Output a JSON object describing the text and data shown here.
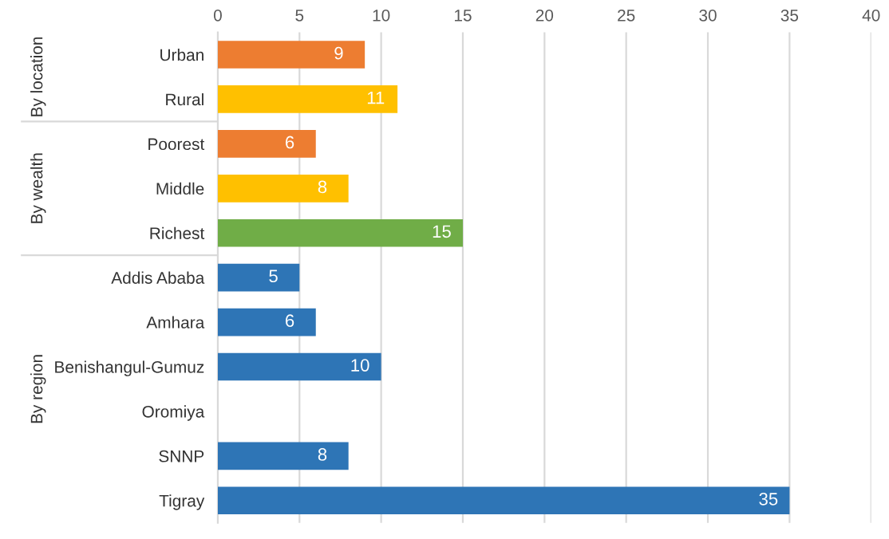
{
  "chart_data": {
    "type": "bar",
    "orientation": "horizontal",
    "categories": [
      "Urban",
      "Rural",
      "Poorest",
      "Middle",
      "Richest",
      "Addis Ababa",
      "Amhara",
      "Benishangul-Gumuz",
      "Oromiya",
      "SNNP",
      "Tigray"
    ],
    "values": [
      9,
      11,
      6,
      8,
      15,
      5,
      6,
      10,
      null,
      8,
      35
    ],
    "colors": [
      "#ed7d31",
      "#ffc000",
      "#ed7d31",
      "#ffc000",
      "#70ad47",
      "#2e75b6",
      "#2e75b6",
      "#2e75b6",
      "#2e75b6",
      "#2e75b6",
      "#2e75b6"
    ],
    "xlim": [
      0,
      40
    ],
    "xticks": [
      0,
      5,
      10,
      15,
      20,
      25,
      30,
      35,
      40
    ],
    "grid": "x",
    "data_labels": true,
    "annotations": [
      "By location",
      "By wealth",
      "By region"
    ]
  }
}
